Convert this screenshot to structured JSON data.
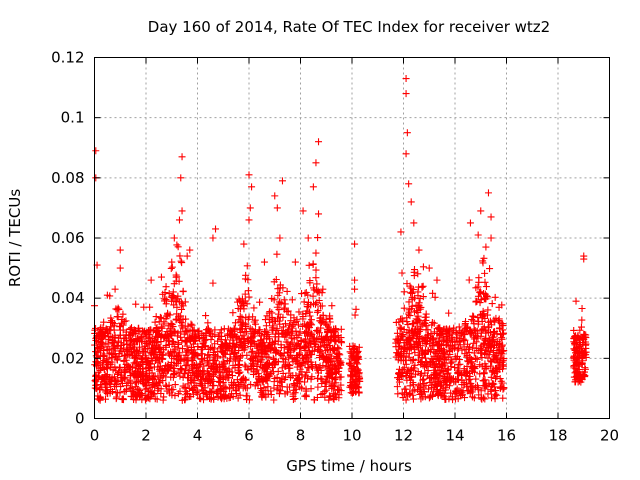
{
  "chart_data": {
    "type": "scatter",
    "title": "Day 160 of 2014, Rate Of TEC Index for receiver wtz2",
    "xlabel": "GPS time / hours",
    "ylabel": "ROTI / TECUs",
    "xlim": [
      0,
      20
    ],
    "ylim": [
      0,
      0.12
    ],
    "xticks": [
      0,
      2,
      4,
      6,
      8,
      10,
      12,
      14,
      16,
      18,
      20
    ],
    "yticks": [
      0,
      0.02,
      0.04,
      0.06,
      0.08,
      0.1,
      0.12
    ],
    "xtick_labels": [
      "0",
      "2",
      "4",
      "6",
      "8",
      "10",
      "12",
      "14",
      "16",
      "18",
      "20"
    ],
    "ytick_labels": [
      "0",
      "0.02",
      "0.04",
      "0.06",
      "0.08",
      "0.1",
      "0.12"
    ],
    "grid": true,
    "marker": "+",
    "color": "#ff0000",
    "series": [
      {
        "name": "ROTI",
        "segments": [
          {
            "t_start": 0.0,
            "t_end": 9.6,
            "baseline_low": 0.006,
            "baseline_high": 0.03
          },
          {
            "t_start": 9.9,
            "t_end": 10.3,
            "baseline_low": 0.008,
            "baseline_high": 0.024
          },
          {
            "t_start": 11.7,
            "t_end": 15.9,
            "baseline_low": 0.006,
            "baseline_high": 0.03
          },
          {
            "t_start": 18.6,
            "t_end": 19.1,
            "baseline_low": 0.012,
            "baseline_high": 0.028
          }
        ],
        "peaks": [
          {
            "x": 0.05,
            "y": 0.089
          },
          {
            "x": 0.05,
            "y": 0.08
          },
          {
            "x": 0.1,
            "y": 0.051
          },
          {
            "x": 0.5,
            "y": 0.041
          },
          {
            "x": 0.8,
            "y": 0.043
          },
          {
            "x": 1.0,
            "y": 0.056
          },
          {
            "x": 1.0,
            "y": 0.05
          },
          {
            "x": 1.6,
            "y": 0.038
          },
          {
            "x": 2.2,
            "y": 0.046
          },
          {
            "x": 2.6,
            "y": 0.047
          },
          {
            "x": 3.0,
            "y": 0.052
          },
          {
            "x": 3.1,
            "y": 0.06
          },
          {
            "x": 3.3,
            "y": 0.066
          },
          {
            "x": 3.4,
            "y": 0.087
          },
          {
            "x": 3.35,
            "y": 0.08
          },
          {
            "x": 3.4,
            "y": 0.069
          },
          {
            "x": 3.6,
            "y": 0.054
          },
          {
            "x": 3.7,
            "y": 0.056
          },
          {
            "x": 4.7,
            "y": 0.063
          },
          {
            "x": 4.6,
            "y": 0.06
          },
          {
            "x": 4.6,
            "y": 0.045
          },
          {
            "x": 5.8,
            "y": 0.058
          },
          {
            "x": 6.0,
            "y": 0.081
          },
          {
            "x": 6.1,
            "y": 0.077
          },
          {
            "x": 6.05,
            "y": 0.07
          },
          {
            "x": 6.0,
            "y": 0.066
          },
          {
            "x": 6.6,
            "y": 0.052
          },
          {
            "x": 7.0,
            "y": 0.074
          },
          {
            "x": 7.1,
            "y": 0.07
          },
          {
            "x": 7.3,
            "y": 0.079
          },
          {
            "x": 7.2,
            "y": 0.06
          },
          {
            "x": 7.8,
            "y": 0.052
          },
          {
            "x": 8.1,
            "y": 0.069
          },
          {
            "x": 8.3,
            "y": 0.06
          },
          {
            "x": 8.5,
            "y": 0.077
          },
          {
            "x": 8.6,
            "y": 0.085
          },
          {
            "x": 8.7,
            "y": 0.092
          },
          {
            "x": 8.7,
            "y": 0.068
          },
          {
            "x": 8.6,
            "y": 0.055
          },
          {
            "x": 10.1,
            "y": 0.058
          },
          {
            "x": 10.1,
            "y": 0.046
          },
          {
            "x": 10.1,
            "y": 0.043
          },
          {
            "x": 11.9,
            "y": 0.062
          },
          {
            "x": 12.1,
            "y": 0.113
          },
          {
            "x": 12.1,
            "y": 0.108
          },
          {
            "x": 12.15,
            "y": 0.095
          },
          {
            "x": 12.1,
            "y": 0.088
          },
          {
            "x": 12.2,
            "y": 0.078
          },
          {
            "x": 12.3,
            "y": 0.072
          },
          {
            "x": 12.4,
            "y": 0.065
          },
          {
            "x": 12.6,
            "y": 0.056
          },
          {
            "x": 13.0,
            "y": 0.05
          },
          {
            "x": 13.3,
            "y": 0.046
          },
          {
            "x": 14.6,
            "y": 0.065
          },
          {
            "x": 14.9,
            "y": 0.061
          },
          {
            "x": 15.0,
            "y": 0.069
          },
          {
            "x": 15.2,
            "y": 0.057
          },
          {
            "x": 15.3,
            "y": 0.075
          },
          {
            "x": 15.4,
            "y": 0.067
          },
          {
            "x": 15.4,
            "y": 0.06
          },
          {
            "x": 18.7,
            "y": 0.039
          },
          {
            "x": 19.0,
            "y": 0.054
          },
          {
            "x": 19.0,
            "y": 0.053
          },
          {
            "x": 19.0,
            "y": 0.028
          },
          {
            "x": 19.0,
            "y": 0.021
          },
          {
            "x": 18.7,
            "y": 0.018
          }
        ]
      }
    ]
  }
}
